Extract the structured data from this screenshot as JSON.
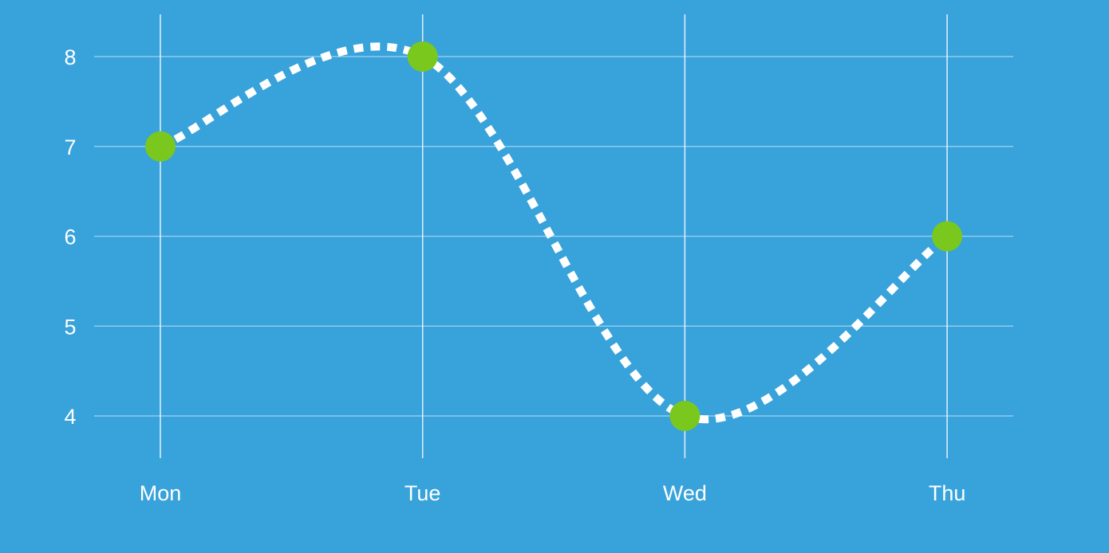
{
  "chart_data": {
    "type": "line",
    "title": "",
    "xlabel": "",
    "ylabel": "",
    "categories": [
      "Mon",
      "Tue",
      "Wed",
      "Thu"
    ],
    "y_ticks": [
      "4",
      "5",
      "6",
      "7",
      "8"
    ],
    "ylim": [
      3.5,
      8.5
    ],
    "grid": true,
    "legend": "none",
    "series": [
      {
        "values": [
          7,
          8,
          4,
          6
        ],
        "line_style": "dotted",
        "curve": "smooth"
      }
    ],
    "colors": {
      "background": "#38a2db",
      "line": "#ffffff",
      "marker": "#7ac81e",
      "grid": "#ffffff",
      "text": "#ffffff"
    }
  }
}
